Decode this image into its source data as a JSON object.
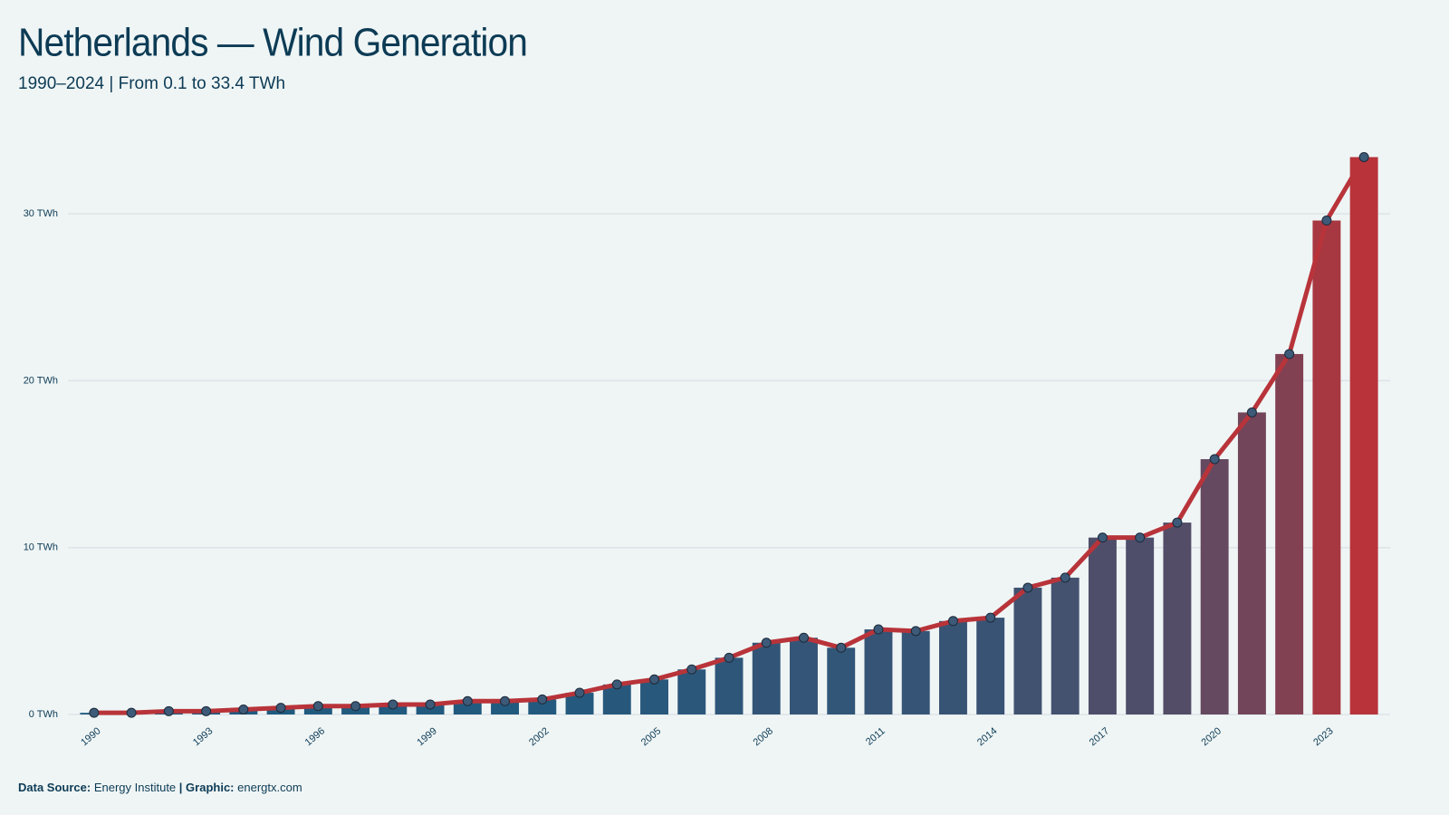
{
  "chart_data": {
    "type": "bar_line",
    "title": "Netherlands — Wind Generation",
    "subtitle": "1990–2024 | From 0.1 to 33.4 TWh",
    "x": [
      1990,
      1991,
      1992,
      1993,
      1994,
      1995,
      1996,
      1997,
      1998,
      1999,
      2000,
      2001,
      2002,
      2003,
      2004,
      2005,
      2006,
      2007,
      2008,
      2009,
      2010,
      2011,
      2012,
      2013,
      2014,
      2015,
      2016,
      2017,
      2018,
      2019,
      2020,
      2021,
      2022,
      2023,
      2024
    ],
    "values": [
      0.1,
      0.1,
      0.2,
      0.2,
      0.3,
      0.4,
      0.5,
      0.5,
      0.6,
      0.6,
      0.8,
      0.8,
      0.9,
      1.3,
      1.8,
      2.1,
      2.7,
      3.4,
      4.3,
      4.6,
      4.0,
      5.1,
      5.0,
      5.6,
      5.8,
      7.6,
      8.2,
      10.6,
      10.6,
      11.5,
      15.3,
      18.1,
      21.6,
      29.6,
      33.4
    ],
    "xlim": [
      1989.3,
      2024.7
    ],
    "xticks": [
      1990,
      1993,
      1996,
      1999,
      2002,
      2005,
      2008,
      2011,
      2014,
      2017,
      2020,
      2023
    ],
    "ylim": [
      0,
      35
    ],
    "yticks": [
      {
        "value": 0,
        "label": "0 TWh"
      },
      {
        "value": 10,
        "label": "10 TWh"
      },
      {
        "value": 20,
        "label": "20 TWh"
      },
      {
        "value": 30,
        "label": "30 TWh"
      }
    ],
    "grid": true,
    "bar_colormap": [
      "#1f5a80",
      "#b8343a"
    ],
    "line_color": "#b8343a",
    "marker_color": "#3d5a78",
    "footer": {
      "source_label": "Data Source:",
      "source": "Energy Institute",
      "separator": "|",
      "graphic_label": "Graphic:",
      "graphic": "energtx.com"
    }
  }
}
